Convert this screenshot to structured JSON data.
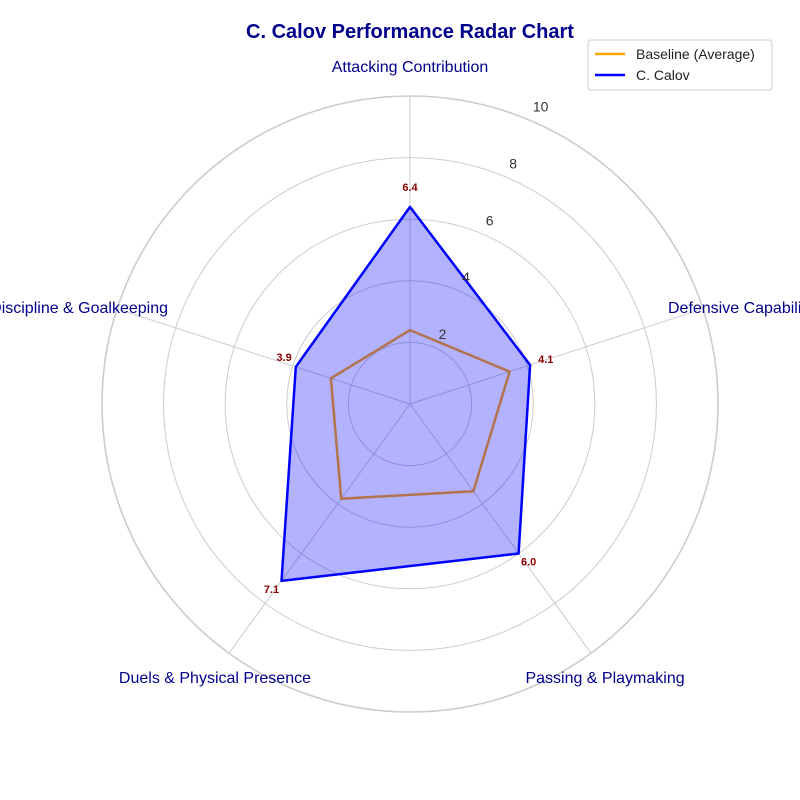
{
  "chart_data": {
    "type": "radar",
    "title": "C. Calov Performance Radar Chart",
    "categories": [
      "Attacking Contribution",
      "Defensive Capability",
      "Passing & Playmaking",
      "Duels & Physical Presence",
      "Discipline & Goalkeeping"
    ],
    "rlim": [
      0,
      10
    ],
    "rticks": [
      2,
      4,
      6,
      8,
      10
    ],
    "grid": true,
    "legend_position": "top-right",
    "series": [
      {
        "name": "Baseline (Average)",
        "values": [
          2.4,
          3.4,
          3.5,
          3.8,
          2.7
        ],
        "color": "#FFA500",
        "fill": false
      },
      {
        "name": "C. Calov",
        "values": [
          6.4,
          4.1,
          6.0,
          7.1,
          3.9
        ],
        "color": "#0000FF",
        "fill": true,
        "fill_color": "#0000FF"
      }
    ],
    "data_labels": [
      "6.4",
      "4.1",
      "6.0",
      "7.1",
      "3.9"
    ],
    "colors": {
      "title": "#00008B",
      "axis_label": "#00008B",
      "data_label": "#8B0000",
      "grid": "#cccccc"
    }
  }
}
